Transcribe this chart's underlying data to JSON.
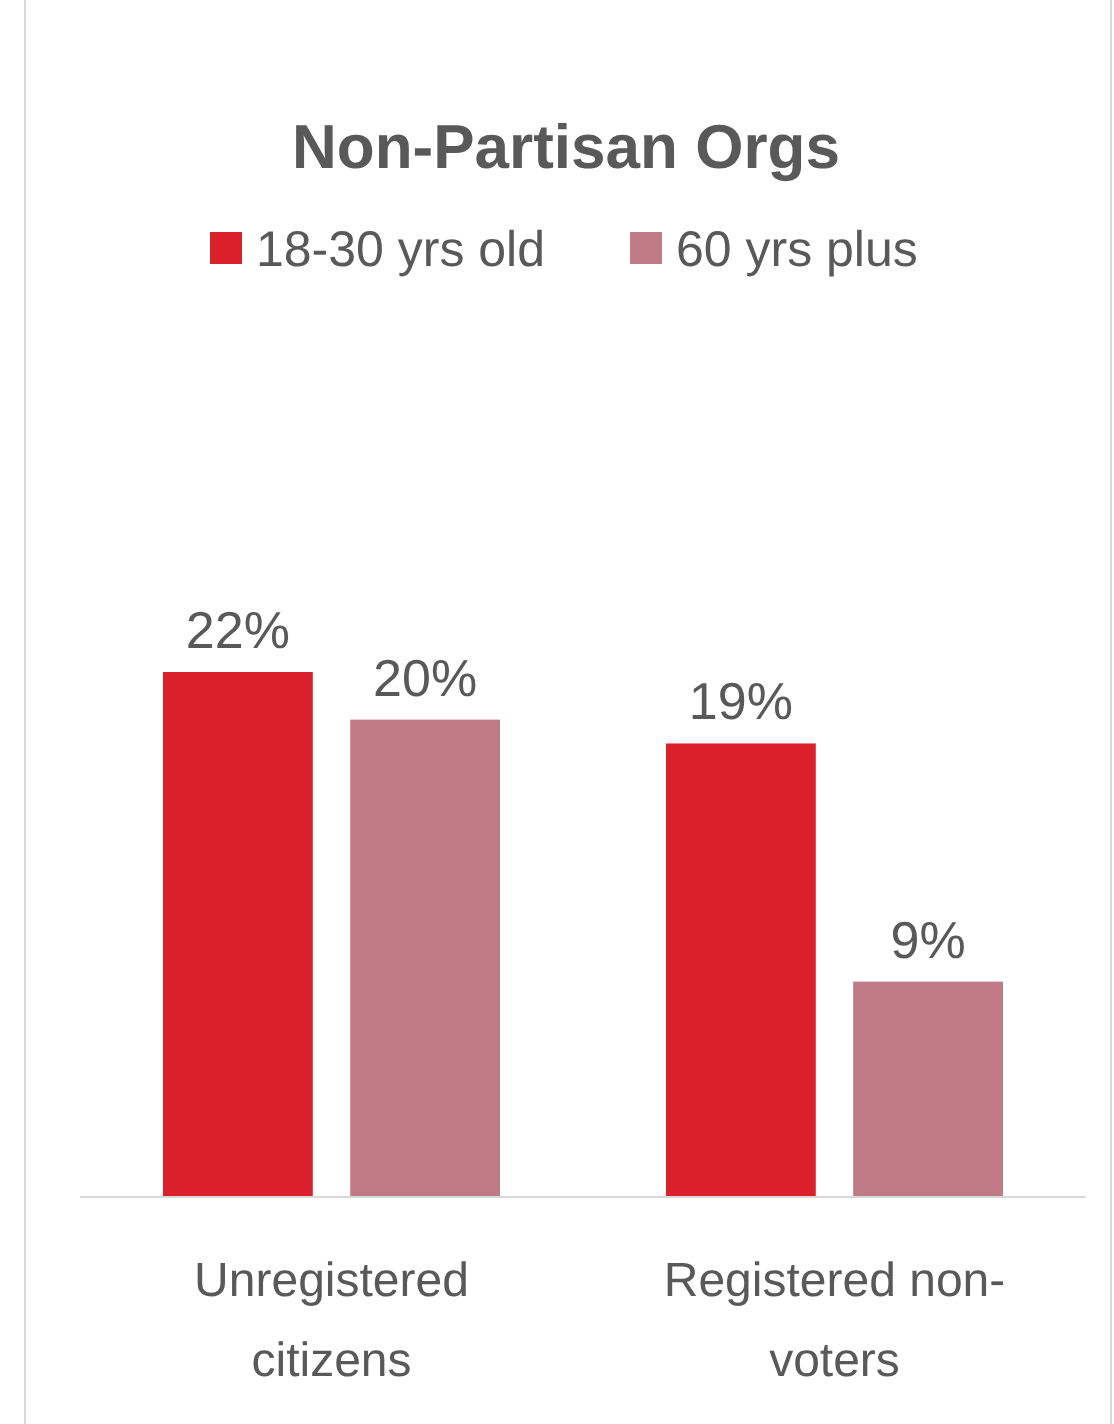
{
  "chart_data": {
    "type": "bar",
    "title": "Non-Partisan Orgs",
    "categories": [
      "Unregistered citizens",
      "Registered non-voters"
    ],
    "relative": false,
    "legend": "top",
    "series": [
      {
        "name": "18-30 yrs old",
        "color": "#d9202b",
        "values": [
          22,
          19
        ],
        "value_labels": [
          "22%",
          "19%"
        ]
      },
      {
        "name": "60 yrs plus",
        "color": "#c07b87",
        "values": [
          20,
          9
        ],
        "value_labels": [
          "20%",
          "9%"
        ]
      }
    ]
  }
}
